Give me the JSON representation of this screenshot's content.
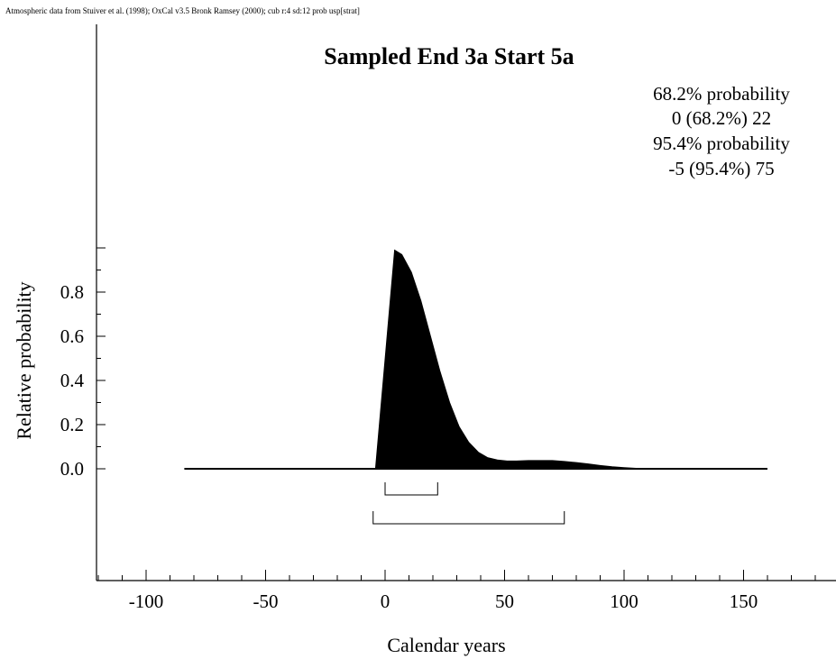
{
  "credit": "Atmospheric data from Stuiver et al. (1998); OxCal v3.5 Bronk Ramsey (2000); cub r:4 sd:12 prob usp[strat]",
  "chart_data": {
    "type": "area",
    "title": "Sampled End 3a Start 5a",
    "xlabel": "Calendar years",
    "ylabel": "Relative probability",
    "xlim": [
      -120,
      190
    ],
    "ylim": [
      0,
      1.0
    ],
    "x_ticks": [
      -100,
      -50,
      0,
      50,
      100,
      150
    ],
    "y_ticks": [
      0.0,
      0.2,
      0.4,
      0.6,
      0.8
    ],
    "y_tick_labels": [
      "0.0",
      "0.2",
      "0.4",
      "0.6",
      "0.8"
    ],
    "x_minor_step": 10,
    "y_minor_step": 0.1,
    "legend": [
      "68.2% probability",
      "0 (68.2%) 22",
      "95.4% probability",
      "-5 (95.4%) 75"
    ],
    "ranges": [
      {
        "level": "68.2%",
        "from": 0,
        "to": 22
      },
      {
        "level": "95.4%",
        "from": -5,
        "to": 75
      }
    ],
    "baseline": [
      -84,
      160
    ],
    "series": [
      {
        "x": [
          -4,
          4,
          7,
          11,
          15,
          19,
          23,
          27,
          31,
          35,
          39,
          43,
          47,
          51,
          55,
          60,
          65,
          70,
          75,
          80,
          85,
          90,
          95,
          100,
          105,
          110
        ],
        "values": [
          0.0,
          0.99,
          0.97,
          0.89,
          0.76,
          0.6,
          0.44,
          0.3,
          0.19,
          0.12,
          0.075,
          0.05,
          0.04,
          0.035,
          0.035,
          0.037,
          0.037,
          0.037,
          0.033,
          0.028,
          0.022,
          0.015,
          0.009,
          0.005,
          0.002,
          0.0
        ]
      }
    ],
    "grid": false
  }
}
